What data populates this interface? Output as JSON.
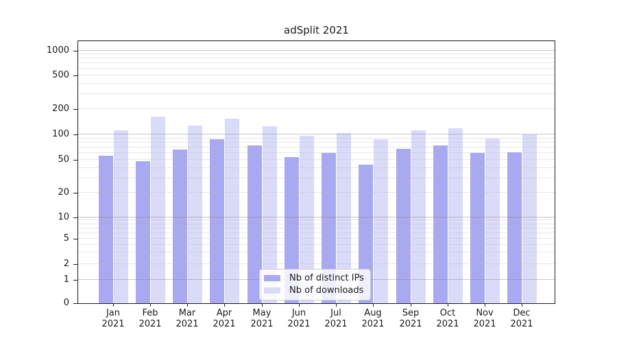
{
  "figure": {
    "background": "#ffffff",
    "text_color": "#1a1a1a"
  },
  "chart_data": {
    "type": "bar",
    "title": "adSplit 2021",
    "categories": [
      "Jan 2021",
      "Feb 2021",
      "Mar 2021",
      "Apr 2021",
      "May 2021",
      "Jun 2021",
      "Jul 2021",
      "Aug 2021",
      "Sep 2021",
      "Oct 2021",
      "Nov 2021",
      "Dec 2021"
    ],
    "series": [
      {
        "name": "Nb of distinct IPs",
        "color": "#a9a9f1",
        "values": [
          56,
          48,
          67,
          88,
          75,
          54,
          61,
          44,
          68,
          74,
          61,
          62
        ]
      },
      {
        "name": "Nb of downloads",
        "color": "#dadaf9",
        "values": [
          112,
          163,
          128,
          154,
          125,
          97,
          105,
          88,
          112,
          119,
          90,
          100
        ]
      }
    ],
    "xlabel": "",
    "ylabel": "",
    "yscale": "log-like-with-zero",
    "yticks": [
      0,
      1,
      2,
      5,
      10,
      20,
      50,
      100,
      200,
      500,
      1000
    ],
    "ylim": [
      0,
      1970
    ],
    "grid": true,
    "grid_above_bars": true,
    "gridline_major_color": "#bdbdbd",
    "gridline_minor_color": "#e7e7e7",
    "legend_position": "lower center"
  }
}
